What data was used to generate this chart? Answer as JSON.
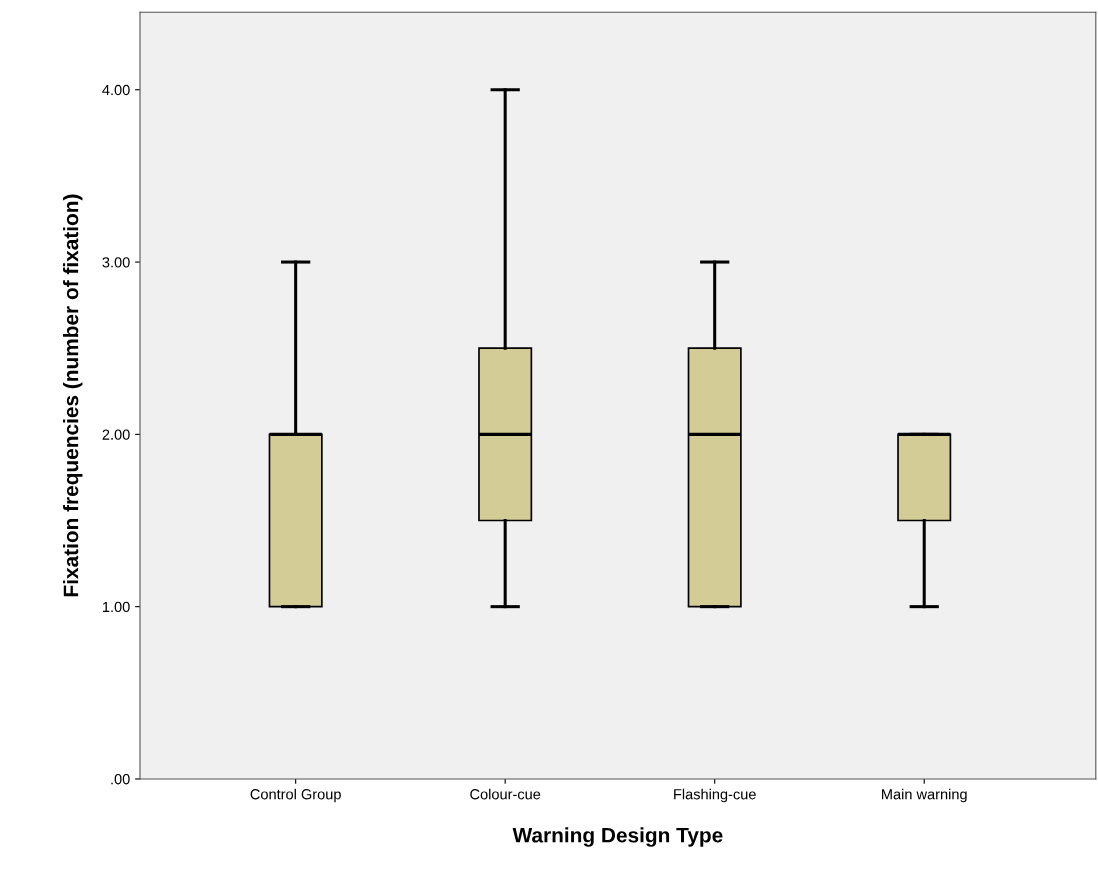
{
  "chart_data": {
    "type": "box",
    "xlabel": "Warning Design Type",
    "ylabel": "Fixation frequencies (number of fixation)",
    "categories": [
      "Control Group",
      "Colour-cue",
      "Flashing-cue",
      "Main warning"
    ],
    "boxes": [
      {
        "low": 1,
        "q1": 1,
        "median": 2,
        "q3": 2,
        "high": 3
      },
      {
        "low": 1,
        "q1": 1.5,
        "median": 2,
        "q3": 2.5,
        "high": 4
      },
      {
        "low": 1,
        "q1": 1,
        "median": 2,
        "q3": 2.5,
        "high": 3
      },
      {
        "low": 1,
        "q1": 1.5,
        "median": 2,
        "q3": 2,
        "high": 2
      }
    ],
    "color": "#d4cc96",
    "ylim": [
      0,
      4.45
    ],
    "yticks": [
      {
        "value": 0,
        "label": ".00"
      },
      {
        "value": 1,
        "label": "1.00"
      },
      {
        "value": 2,
        "label": "2.00"
      },
      {
        "value": 3,
        "label": "3.00"
      },
      {
        "value": 4,
        "label": "4.00"
      }
    ],
    "grid": false
  }
}
